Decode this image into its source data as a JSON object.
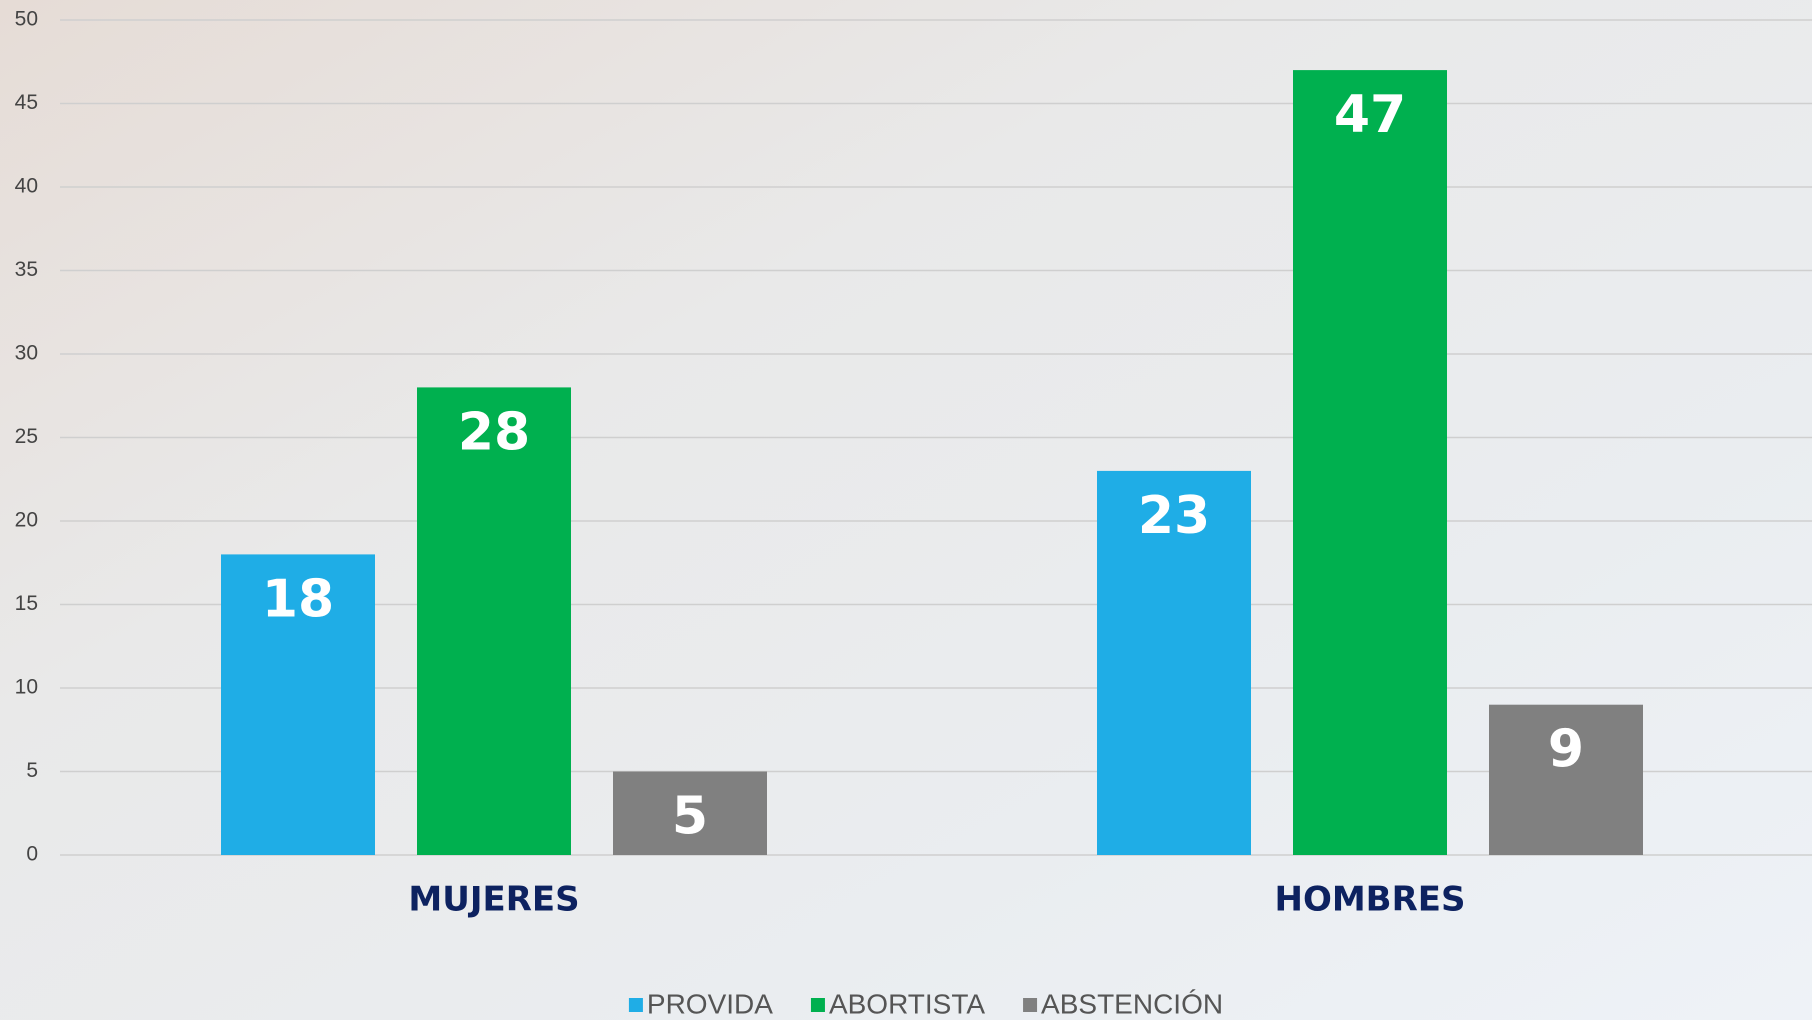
{
  "chart_data": {
    "type": "bar",
    "categories": [
      "MUJERES",
      "HOMBRES"
    ],
    "series": [
      {
        "name": "PROVIDA",
        "color": "#1fade6",
        "values": [
          18,
          23
        ]
      },
      {
        "name": "ABORTISTA",
        "color": "#00b04f",
        "values": [
          28,
          47
        ]
      },
      {
        "name": "ABSTENCIÓN",
        "color": "#808080",
        "values": [
          5,
          9
        ]
      }
    ],
    "ylim": [
      0,
      50
    ],
    "yticks": [
      0,
      5,
      10,
      15,
      20,
      25,
      30,
      35,
      40,
      45,
      50
    ],
    "grid": true,
    "legend": "bottom"
  }
}
